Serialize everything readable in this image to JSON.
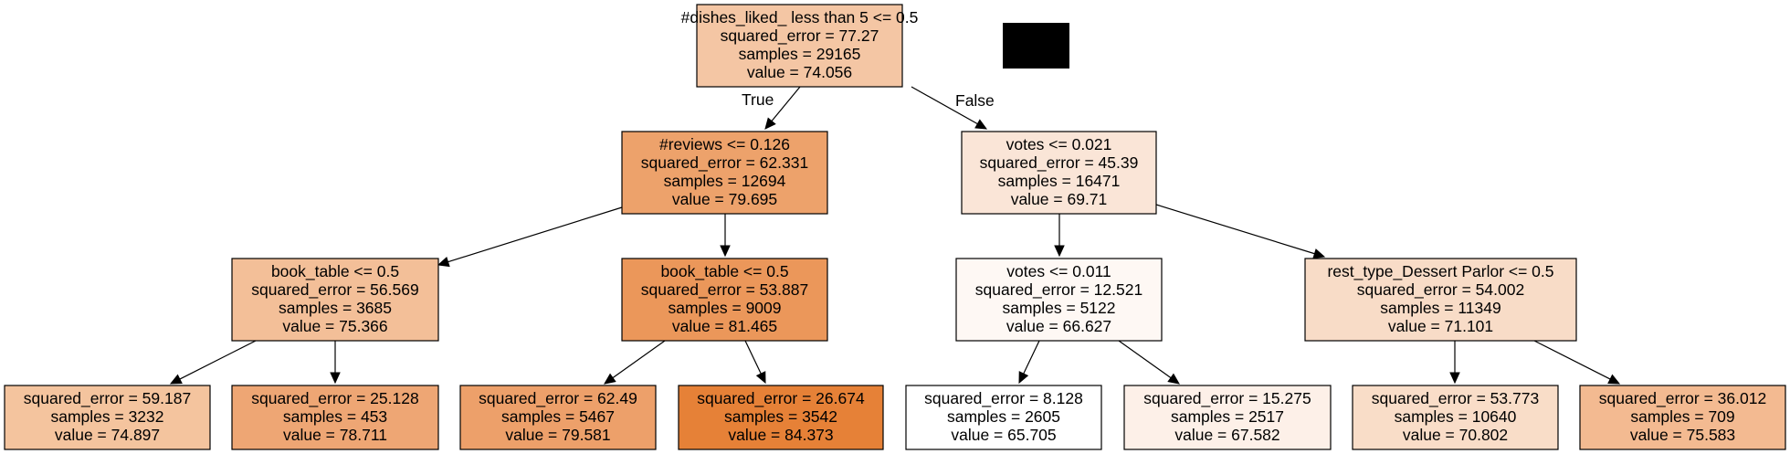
{
  "tree": {
    "nodes": [
      {
        "id": "n0",
        "lines": [
          "#dishes_liked_ less than 5 <= 0.5",
          "squared_error = 77.27",
          "samples = 29165",
          "value = 74.056"
        ],
        "fill": "#f4c6a4"
      },
      {
        "id": "n1",
        "lines": [
          "#reviews <= 0.126",
          "squared_error = 62.331",
          "samples = 12694",
          "value = 79.695"
        ],
        "fill": "#eda26b"
      },
      {
        "id": "n2",
        "lines": [
          "votes <= 0.021",
          "squared_error = 45.39",
          "samples = 16471",
          "value = 69.71"
        ],
        "fill": "#fae5d7"
      },
      {
        "id": "n3",
        "lines": [
          "book_table <= 0.5",
          "squared_error = 56.569",
          "samples = 3685",
          "value = 75.366"
        ],
        "fill": "#f3bf98"
      },
      {
        "id": "n4",
        "lines": [
          "book_table <= 0.5",
          "squared_error = 53.887",
          "samples = 9009",
          "value = 81.465"
        ],
        "fill": "#eb975a"
      },
      {
        "id": "n5",
        "lines": [
          "votes <= 0.011",
          "squared_error = 12.521",
          "samples = 5122",
          "value = 66.627"
        ],
        "fill": "#fef8f4"
      },
      {
        "id": "n6",
        "lines": [
          "rest_type_Dessert Parlor <= 0.5",
          "squared_error = 54.002",
          "samples = 11349",
          "value = 71.101"
        ],
        "fill": "#f8dcc7"
      },
      {
        "id": "n7",
        "lines": [
          "squared_error = 59.187",
          "samples = 3232",
          "value = 74.897"
        ],
        "fill": "#f4c49e"
      },
      {
        "id": "n8",
        "lines": [
          "squared_error = 25.128",
          "samples = 453",
          "value = 78.711"
        ],
        "fill": "#eea674"
      },
      {
        "id": "n9",
        "lines": [
          "squared_error = 62.49",
          "samples = 5467",
          "value = 79.581"
        ],
        "fill": "#eda06a"
      },
      {
        "id": "n10",
        "lines": [
          "squared_error = 26.674",
          "samples = 3542",
          "value = 84.373"
        ],
        "fill": "#e68137"
      },
      {
        "id": "n11",
        "lines": [
          "squared_error = 8.128",
          "samples = 2605",
          "value = 65.705"
        ],
        "fill": "#ffffff"
      },
      {
        "id": "n12",
        "lines": [
          "squared_error = 15.275",
          "samples = 2517",
          "value = 67.582"
        ],
        "fill": "#fdf0e8"
      },
      {
        "id": "n13",
        "lines": [
          "squared_error = 53.773",
          "samples = 10640",
          "value = 70.802"
        ],
        "fill": "#f9ddc8"
      },
      {
        "id": "n14",
        "lines": [
          "squared_error = 36.012",
          "samples = 709",
          "value = 75.583"
        ],
        "fill": "#f3ba91"
      }
    ],
    "edges": [
      {
        "from": "n0",
        "to": "n1",
        "label": "True"
      },
      {
        "from": "n0",
        "to": "n2",
        "label": "False"
      },
      {
        "from": "n1",
        "to": "n3",
        "label": ""
      },
      {
        "from": "n1",
        "to": "n4",
        "label": ""
      },
      {
        "from": "n2",
        "to": "n5",
        "label": ""
      },
      {
        "from": "n2",
        "to": "n6",
        "label": ""
      },
      {
        "from": "n3",
        "to": "n7",
        "label": ""
      },
      {
        "from": "n3",
        "to": "n8",
        "label": ""
      },
      {
        "from": "n4",
        "to": "n9",
        "label": ""
      },
      {
        "from": "n4",
        "to": "n10",
        "label": ""
      },
      {
        "from": "n5",
        "to": "n11",
        "label": ""
      },
      {
        "from": "n5",
        "to": "n12",
        "label": ""
      },
      {
        "from": "n6",
        "to": "n13",
        "label": ""
      },
      {
        "from": "n6",
        "to": "n14",
        "label": ""
      }
    ],
    "redaction_fill": "#000000"
  }
}
